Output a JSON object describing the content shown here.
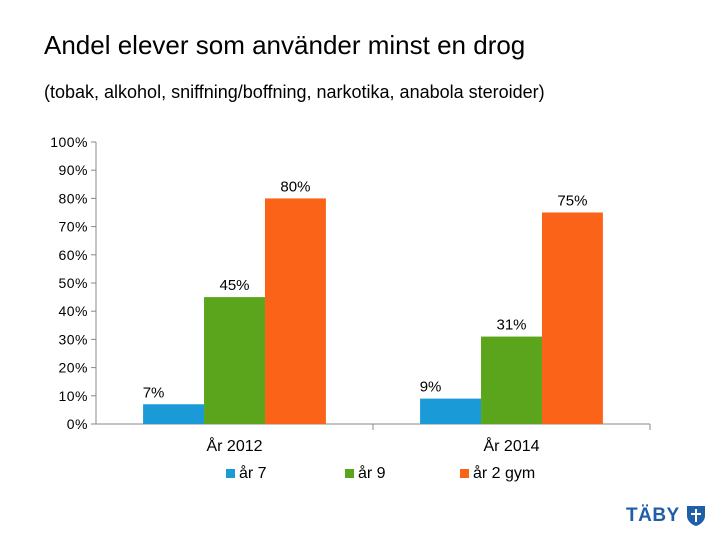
{
  "title": "Andel elever som använder minst en drog",
  "subtitle": "(tobak, alkohol, sniffning/boffning, narkotika, anabola steroider)",
  "brand": {
    "name": "TÄBY",
    "icon": "taby-shield-icon",
    "color": "#1f5fa8"
  },
  "chart_data": {
    "type": "bar",
    "title": "",
    "xlabel": "",
    "ylabel": "",
    "categories": [
      "År 2012",
      "År 2014"
    ],
    "ylim": [
      0,
      100
    ],
    "yticks": [
      "0%",
      "10%",
      "20%",
      "30%",
      "40%",
      "50%",
      "60%",
      "70%",
      "80%",
      "90%",
      "100%"
    ],
    "grid": false,
    "legend_position": "bottom",
    "series": [
      {
        "name": "år 7",
        "color": "#1a9ad6",
        "values": [
          7,
          9
        ],
        "labels": [
          "7%",
          "9%"
        ]
      },
      {
        "name": "år 9",
        "color": "#5aa51b",
        "values": [
          45,
          31
        ],
        "labels": [
          "45%",
          "31%"
        ]
      },
      {
        "name": "år 2 gym",
        "color": "#fb6418",
        "values": [
          80,
          75
        ],
        "labels": [
          "80%",
          "75%"
        ]
      }
    ]
  }
}
